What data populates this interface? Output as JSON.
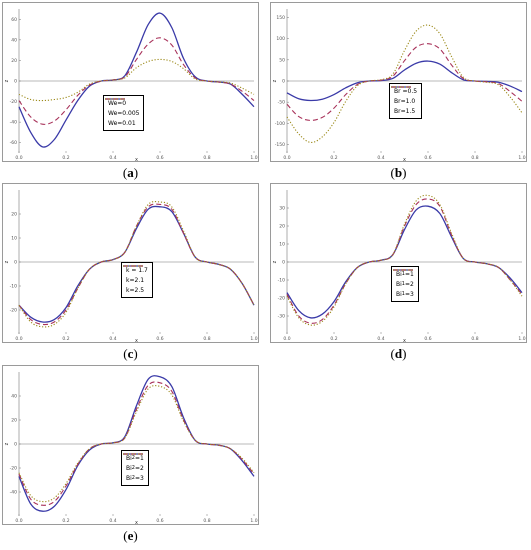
{
  "chart_data": [
    {
      "id": "a",
      "type": "line",
      "caption_letter": "a",
      "xlabel": "x",
      "ylabel": "z",
      "xlim": [
        0,
        1
      ],
      "ylim": [
        -70,
        70
      ],
      "x_ticks": [
        "0.0",
        "0.2",
        "0.4",
        "0.6",
        "0.8",
        "1.0"
      ],
      "y_ticks": [
        "-60",
        "-40",
        "-20",
        "0",
        "20",
        "40",
        "60"
      ],
      "legend": {
        "position": "center"
      },
      "x": [
        0.0,
        0.05,
        0.1,
        0.15,
        0.2,
        0.25,
        0.3,
        0.35,
        0.4,
        0.45,
        0.5,
        0.55,
        0.6,
        0.65,
        0.7,
        0.75,
        0.8,
        0.85,
        0.9,
        0.95,
        1.0
      ],
      "series": [
        {
          "name": "We=0",
          "color": "#3a3aa8",
          "dash": "solid",
          "values": [
            -25,
            -50,
            -64,
            -57,
            -38,
            -19,
            -5,
            0,
            1,
            5,
            28,
            55,
            66,
            52,
            22,
            4,
            0,
            -1,
            -3,
            -13,
            -25
          ]
        },
        {
          "name": "We=0.005",
          "color": "#a8325a",
          "dash": "dashed",
          "values": [
            -19,
            -35,
            -42,
            -39,
            -28,
            -14,
            -4,
            0,
            1,
            4,
            21,
            36,
            42,
            35,
            16,
            3,
            0,
            -1,
            -3,
            -10,
            -19
          ]
        },
        {
          "name": "We=0.01",
          "color": "#9c8a1a",
          "dash": "dotted",
          "values": [
            -13,
            -18,
            -19,
            -18,
            -16,
            -11,
            -3,
            0,
            1,
            3,
            13,
            19,
            21,
            19,
            12,
            2,
            0,
            -1,
            -2,
            -7,
            -13
          ]
        }
      ]
    },
    {
      "id": "b",
      "type": "line",
      "caption_letter": "b",
      "xlabel": "x",
      "ylabel": "z",
      "xlim": [
        0,
        1
      ],
      "ylim": [
        -170,
        170
      ],
      "x_ticks": [
        "0.0",
        "0.2",
        "0.4",
        "0.6",
        "0.8",
        "1.0"
      ],
      "y_ticks": [
        "-150",
        "-100",
        "-50",
        "0",
        "50",
        "100",
        "150"
      ],
      "legend": {
        "position": "bottom-center"
      },
      "x": [
        0.0,
        0.05,
        0.1,
        0.15,
        0.2,
        0.25,
        0.3,
        0.35,
        0.4,
        0.45,
        0.5,
        0.55,
        0.6,
        0.65,
        0.7,
        0.75,
        0.8,
        0.85,
        0.9,
        0.95,
        1.0
      ],
      "series": [
        {
          "name": "Br =0.5",
          "color": "#3a3aa8",
          "dash": "solid",
          "values": [
            -28,
            -42,
            -46,
            -43,
            -32,
            -16,
            -4,
            0,
            1,
            6,
            26,
            42,
            47,
            40,
            20,
            3,
            0,
            -1,
            -3,
            -12,
            -25
          ]
        },
        {
          "name": "Br=1.0",
          "color": "#a8325a",
          "dash": "dashed",
          "values": [
            -55,
            -84,
            -93,
            -86,
            -64,
            -32,
            -8,
            0,
            2,
            11,
            48,
            80,
            88,
            76,
            38,
            6,
            0,
            -2,
            -6,
            -25,
            -48
          ]
        },
        {
          "name": "Br=1.5",
          "color": "#9c8a1a",
          "dash": "dotted",
          "values": [
            -85,
            -125,
            -145,
            -132,
            -98,
            -48,
            -11,
            0,
            3,
            16,
            72,
            118,
            132,
            112,
            58,
            9,
            0,
            -3,
            -9,
            -38,
            -75
          ]
        }
      ]
    },
    {
      "id": "c",
      "type": "line",
      "caption_letter": "c",
      "xlabel": "x",
      "ylabel": "z",
      "xlim": [
        0,
        1
      ],
      "ylim": [
        -30,
        30
      ],
      "x_ticks": [
        "0.0",
        "0.2",
        "0.4",
        "0.6",
        "0.8",
        "1.0"
      ],
      "y_ticks": [
        "-20",
        "-10",
        "0",
        "10",
        "20"
      ],
      "legend": {
        "position": "center-left"
      },
      "x": [
        0.0,
        0.05,
        0.1,
        0.15,
        0.2,
        0.25,
        0.3,
        0.35,
        0.4,
        0.45,
        0.5,
        0.55,
        0.6,
        0.65,
        0.7,
        0.75,
        0.8,
        0.85,
        0.9,
        0.95,
        1.0
      ],
      "series": [
        {
          "name": "k = 1.7",
          "color": "#3a3aa8",
          "dash": "solid",
          "values": [
            -18,
            -23,
            -25,
            -24,
            -19,
            -10,
            -3,
            0,
            1,
            4,
            14,
            22,
            23,
            21,
            12,
            2,
            0,
            -1,
            -3,
            -9,
            -18
          ]
        },
        {
          "name": "k=2.1",
          "color": "#a8325a",
          "dash": "dashed",
          "values": [
            -18,
            -24,
            -26,
            -25,
            -20,
            -11,
            -3,
            0,
            1,
            4,
            15,
            23,
            24,
            22,
            12,
            2,
            0,
            -1,
            -3,
            -9,
            -18
          ]
        },
        {
          "name": "k=2.5",
          "color": "#9c8a1a",
          "dash": "dotted",
          "values": [
            -18,
            -25,
            -27,
            -26,
            -21,
            -11,
            -3,
            0,
            1,
            4,
            15,
            24,
            25,
            23,
            13,
            2,
            0,
            -1,
            -3,
            -9,
            -18
          ]
        }
      ]
    },
    {
      "id": "d",
      "type": "line",
      "caption_letter": "d",
      "xlabel": "x",
      "ylabel": "z",
      "xlim": [
        0,
        1
      ],
      "ylim": [
        -40,
        40
      ],
      "x_ticks": [
        "0.0",
        "0.2",
        "0.4",
        "0.6",
        "0.8",
        "1.0"
      ],
      "y_ticks": [
        "-30",
        "-20",
        "-10",
        "0",
        "10",
        "20",
        "30"
      ],
      "legend": {
        "position": "bottom-center"
      },
      "x": [
        0.0,
        0.05,
        0.1,
        0.15,
        0.2,
        0.25,
        0.3,
        0.35,
        0.4,
        0.45,
        0.5,
        0.55,
        0.6,
        0.65,
        0.7,
        0.75,
        0.8,
        0.85,
        0.9,
        0.95,
        1.0
      ],
      "series": [
        {
          "name": "Bi1=1",
          "name_main": "Bi",
          "name_sub": "1",
          "name_tail": "=1",
          "color": "#3a3aa8",
          "dash": "solid",
          "values": [
            -17,
            -27,
            -31,
            -29,
            -22,
            -11,
            -3,
            0,
            1,
            4,
            18,
            29,
            31,
            27,
            14,
            2,
            0,
            -1,
            -3,
            -9,
            -17
          ]
        },
        {
          "name": "Bi1=2",
          "name_main": "Bi",
          "name_sub": "1",
          "name_tail": "=2",
          "color": "#a8325a",
          "dash": "dashed",
          "values": [
            -18,
            -30,
            -34,
            -32,
            -24,
            -12,
            -3,
            0,
            1,
            4,
            20,
            32,
            35,
            31,
            15,
            2,
            0,
            -1,
            -3,
            -10,
            -18
          ]
        },
        {
          "name": "Bi1=3",
          "name_main": "Bi",
          "name_sub": "1",
          "name_tail": "=3",
          "color": "#9c8a1a",
          "dash": "dotted",
          "values": [
            -19,
            -31,
            -35,
            -33,
            -25,
            -12,
            -3,
            0,
            1,
            4,
            21,
            34,
            37,
            32,
            16,
            2,
            0,
            -1,
            -3,
            -10,
            -19
          ]
        }
      ]
    },
    {
      "id": "e",
      "type": "line",
      "caption_letter": "e",
      "xlabel": "x",
      "ylabel": "z",
      "xlim": [
        0,
        1
      ],
      "ylim": [
        -60,
        60
      ],
      "x_ticks": [
        "0.0",
        "0.2",
        "0.4",
        "0.6",
        "0.8",
        "1.0"
      ],
      "y_ticks": [
        "-40",
        "-20",
        "0",
        "20",
        "40"
      ],
      "legend": {
        "position": "bottom-center"
      },
      "x": [
        0.0,
        0.05,
        0.1,
        0.15,
        0.2,
        0.25,
        0.3,
        0.35,
        0.4,
        0.45,
        0.5,
        0.55,
        0.6,
        0.65,
        0.7,
        0.75,
        0.8,
        0.85,
        0.9,
        0.95,
        1.0
      ],
      "series": [
        {
          "name": "Bi2=1",
          "name_main": "Bi",
          "name_sub": "2",
          "name_tail": "=1",
          "color": "#3a3aa8",
          "dash": "solid",
          "values": [
            -27,
            -50,
            -56,
            -52,
            -38,
            -18,
            -5,
            0,
            1,
            6,
            32,
            54,
            56,
            48,
            22,
            3,
            0,
            -1,
            -4,
            -14,
            -27
          ]
        },
        {
          "name": "Bi2=2",
          "name_main": "Bi",
          "name_sub": "2",
          "name_tail": "=2",
          "color": "#a8325a",
          "dash": "dashed",
          "values": [
            -25,
            -46,
            -51,
            -48,
            -35,
            -17,
            -4,
            0,
            1,
            5,
            29,
            49,
            51,
            44,
            20,
            3,
            0,
            -1,
            -4,
            -13,
            -25
          ]
        },
        {
          "name": "Bi2=3",
          "name_main": "Bi",
          "name_sub": "2",
          "name_tail": "=3",
          "color": "#9c8a1a",
          "dash": "dotted",
          "values": [
            -24,
            -43,
            -48,
            -45,
            -33,
            -16,
            -4,
            0,
            1,
            5,
            27,
            46,
            48,
            41,
            19,
            3,
            0,
            -1,
            -4,
            -12,
            -24
          ]
        }
      ]
    }
  ]
}
